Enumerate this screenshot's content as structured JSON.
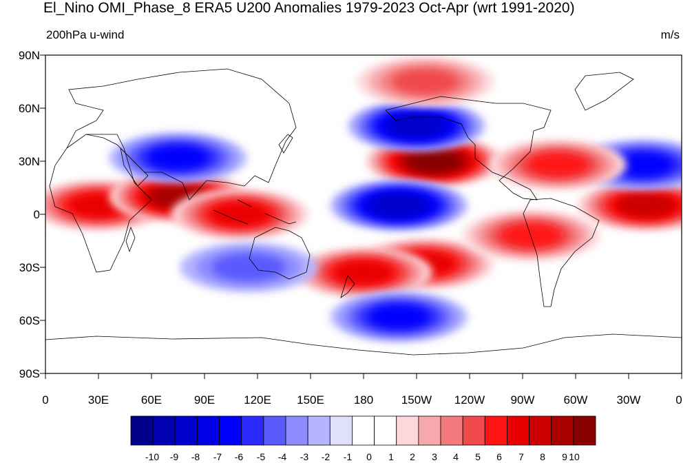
{
  "header": {
    "title": "El_Nino OMI_Phase_8 ERA5 U200 Anomalies 1979-2023 Oct-Apr (wrt 1991-2020)",
    "left_label": "200hPa u-wind",
    "right_label": "m/s"
  },
  "axes": {
    "lat_labels": [
      "90N",
      "60N",
      "30N",
      "0",
      "30S",
      "60S",
      "90S"
    ],
    "lon_labels": [
      "0",
      "30E",
      "60E",
      "90E",
      "120E",
      "150E",
      "180",
      "150W",
      "120W",
      "90W",
      "60W",
      "30W",
      "0"
    ]
  },
  "colorbar": {
    "labels": [
      "-10",
      "-9",
      "-8",
      "-7",
      "-6",
      "-5",
      "-4",
      "-3",
      "-2",
      "-1",
      "0",
      "1",
      "2",
      "3",
      "4",
      "5",
      "6",
      "7",
      "8",
      "9",
      "10"
    ],
    "colors": [
      "#00008a",
      "#0000b0",
      "#0000cc",
      "#0000e6",
      "#0000ff",
      "#2a2aff",
      "#5a5aff",
      "#8c8cff",
      "#b4b4ff",
      "#e0e0fa",
      "#ffffff",
      "#ffffff",
      "#fcd8dc",
      "#f7a8ac",
      "#f47a7e",
      "#f04a4c",
      "#ff1414",
      "#e80000",
      "#cc0000",
      "#a80000",
      "#880000"
    ]
  },
  "anomalies": [
    {
      "lon": 30,
      "lat": 5,
      "value": 6
    },
    {
      "lon": 75,
      "lat": 10,
      "value": 8
    },
    {
      "lon": 110,
      "lat": 0,
      "value": 6
    },
    {
      "lon": 75,
      "lat": 32,
      "value": -5
    },
    {
      "lon": 220,
      "lat": 30,
      "value": 9
    },
    {
      "lon": 210,
      "lat": 50,
      "value": -7
    },
    {
      "lon": 200,
      "lat": 5,
      "value": -7
    },
    {
      "lon": 215,
      "lat": -28,
      "value": 6
    },
    {
      "lon": 180,
      "lat": -33,
      "value": 6
    },
    {
      "lon": 200,
      "lat": -58,
      "value": -5
    },
    {
      "lon": 340,
      "lat": 5,
      "value": 7
    },
    {
      "lon": 338,
      "lat": 28,
      "value": -5
    },
    {
      "lon": 275,
      "lat": -12,
      "value": 5
    },
    {
      "lon": 290,
      "lat": 28,
      "value": 5
    },
    {
      "lon": 215,
      "lat": 75,
      "value": 4
    },
    {
      "lon": 115,
      "lat": -30,
      "value": -3
    }
  ]
}
